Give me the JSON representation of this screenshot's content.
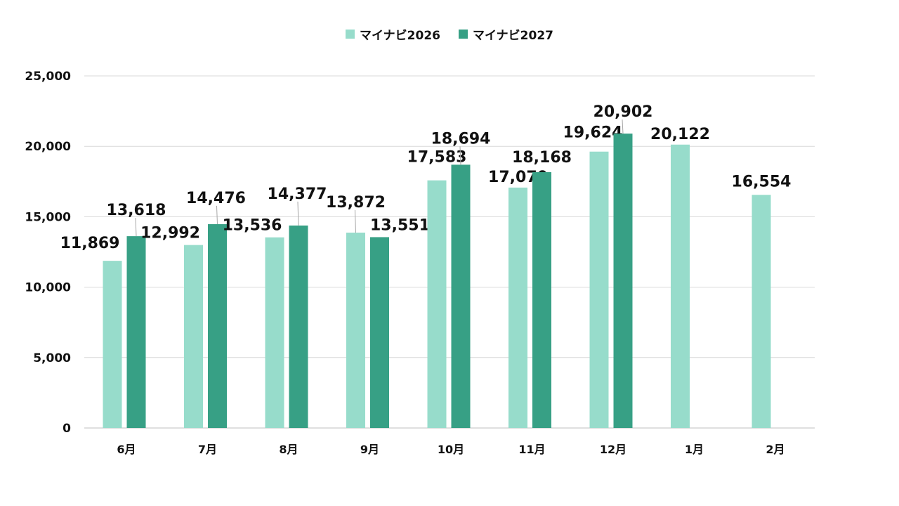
{
  "chart_data": {
    "type": "bar",
    "categories": [
      "6月",
      "7月",
      "8月",
      "9月",
      "10月",
      "11月",
      "12月",
      "1月",
      "2月"
    ],
    "series": [
      {
        "name": "マイナビ2026",
        "color": "#97dccb",
        "values": [
          11869,
          12992,
          13536,
          13872,
          17583,
          17070,
          19624,
          20122,
          16554
        ],
        "labels": [
          "11,869",
          "12,992",
          "13,536",
          "13,872",
          "17,583",
          "17,070",
          "19,624",
          "20,122",
          "16,554"
        ]
      },
      {
        "name": "マイナビ2027",
        "color": "#37a085",
        "values": [
          13618,
          14476,
          14377,
          13551,
          18694,
          18168,
          20902,
          null,
          null
        ],
        "labels": [
          "13,618",
          "14,476",
          "14,377",
          "13,551",
          "18,694",
          "18,168",
          "20,902",
          "",
          ""
        ]
      }
    ],
    "yticks": [
      "0",
      "5,000",
      "10,000",
      "15,000",
      "20,000",
      "25,000"
    ],
    "ylim": [
      0,
      25000
    ],
    "grid": true,
    "legend_position": "top-center"
  }
}
